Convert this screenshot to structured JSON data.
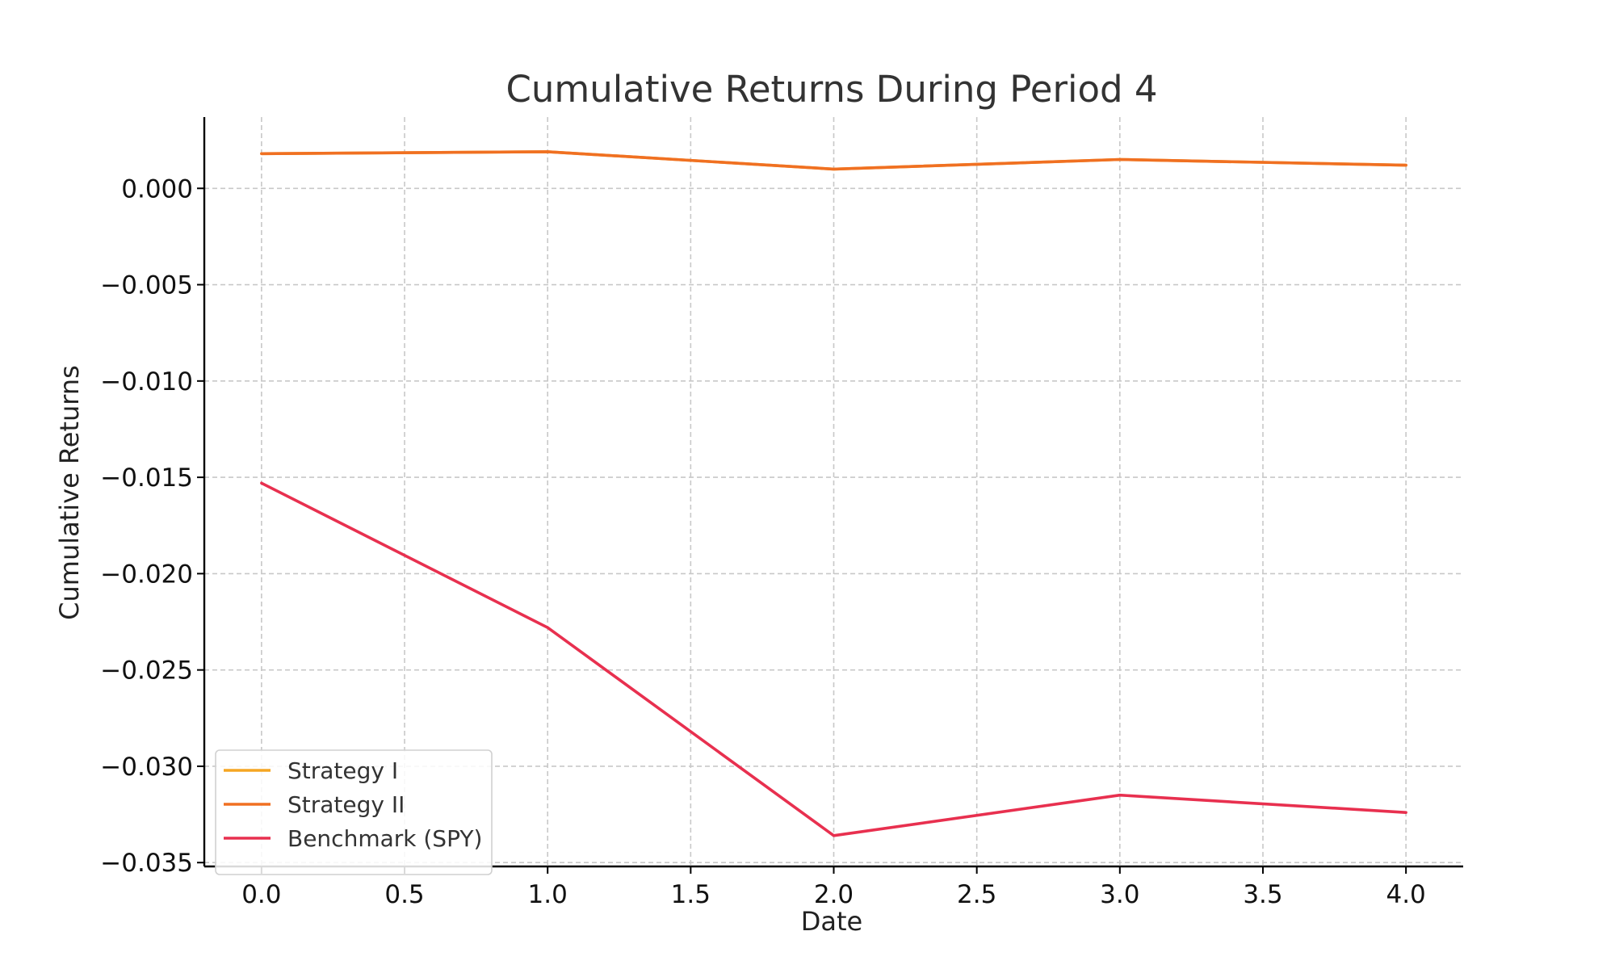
{
  "chart_data": {
    "type": "line",
    "title": "Cumulative Returns During Period 4",
    "xlabel": "Date",
    "ylabel": "Cumulative Returns",
    "x": [
      0,
      1,
      2,
      3,
      4
    ],
    "xlim": [
      -0.2,
      4.2
    ],
    "ylim": [
      -0.0352,
      0.0037
    ],
    "xticks": [
      0.0,
      0.5,
      1.0,
      1.5,
      2.0,
      2.5,
      3.0,
      3.5,
      4.0
    ],
    "xtick_labels": [
      "0.0",
      "0.5",
      "1.0",
      "1.5",
      "2.0",
      "2.5",
      "3.0",
      "3.5",
      "4.0"
    ],
    "yticks": [
      0.0,
      -0.005,
      -0.01,
      -0.015,
      -0.02,
      -0.025,
      -0.03,
      -0.035
    ],
    "ytick_labels": [
      "0.000",
      "−0.005",
      "−0.010",
      "−0.015",
      "−0.020",
      "−0.025",
      "−0.030",
      "−0.035"
    ],
    "grid": true,
    "legend_position": "lower-left",
    "series": [
      {
        "name": "Strategy I",
        "color": "#f5a623",
        "values": [
          0.0018,
          0.0019,
          0.001,
          0.0015,
          0.0012
        ]
      },
      {
        "name": "Strategy II",
        "color": "#f07022",
        "values": [
          0.0018,
          0.0019,
          0.001,
          0.0015,
          0.0012
        ]
      },
      {
        "name": "Benchmark (SPY)",
        "color": "#e8304f",
        "values": [
          -0.0153,
          -0.0228,
          -0.0336,
          -0.0315,
          -0.0324
        ]
      }
    ]
  }
}
